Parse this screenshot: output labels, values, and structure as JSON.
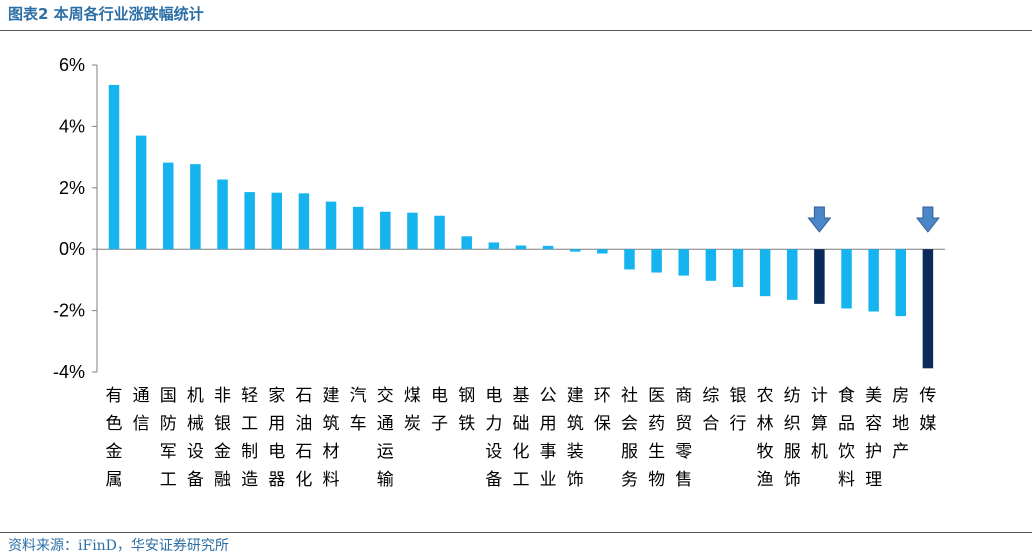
{
  "header": {
    "title": "图表2 本周各行业涨跌幅统计"
  },
  "footer": {
    "source": "资料来源：iFinD，华安证券研究所"
  },
  "chart_data": {
    "type": "bar",
    "categories": [
      "有色金属",
      "通信",
      "国防军工",
      "机械设备",
      "非银金融",
      "轻工制造",
      "家用电器",
      "石油石化",
      "建筑材料",
      "汽车",
      "交通运输",
      "煤炭",
      "电子",
      "钢铁",
      "电力设备",
      "基础化工",
      "公用事业",
      "建筑装饰",
      "环保",
      "社会服务",
      "医药生物",
      "商贸零售",
      "综合",
      "银行",
      "农林牧渔",
      "纺织服饰",
      "计算机",
      "食品饮料",
      "美容护理",
      "房地产",
      "传媒"
    ],
    "values": [
      5.35,
      3.7,
      2.82,
      2.77,
      2.27,
      1.86,
      1.84,
      1.82,
      1.55,
      1.38,
      1.22,
      1.19,
      1.09,
      0.42,
      0.22,
      0.12,
      0.11,
      -0.08,
      -0.14,
      -0.66,
      -0.76,
      -0.86,
      -1.03,
      -1.23,
      -1.53,
      -1.65,
      -1.78,
      -1.93,
      -2.03,
      -2.18,
      -3.88
    ],
    "ylim": [
      -4,
      6
    ],
    "yticks": [
      "-4%",
      "-2%",
      "0%",
      "2%",
      "4%",
      "6%"
    ],
    "ytick_values": [
      -4,
      -2,
      0,
      2,
      4,
      6
    ],
    "highlighted": [
      "计算机",
      "传媒"
    ],
    "colors": {
      "bar": "#16b4ee",
      "highlight": "#0a2a5c",
      "arrow": "#4a86c8"
    },
    "arrow_marker": "down-arrow"
  }
}
